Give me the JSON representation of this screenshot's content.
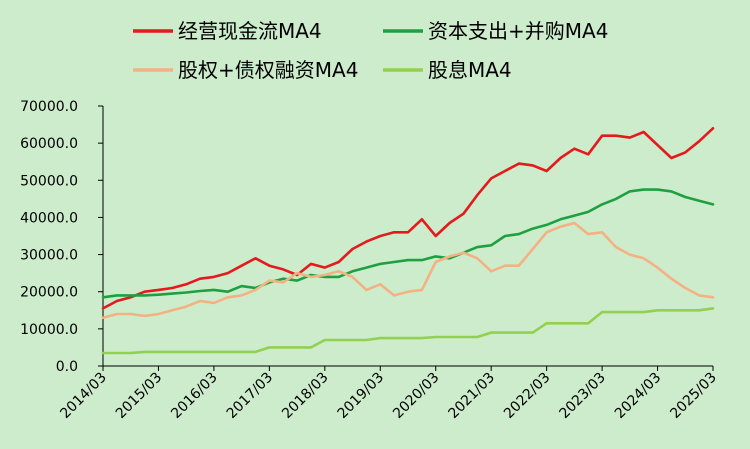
{
  "chart_data": {
    "type": "line",
    "title": "",
    "xlabel": "",
    "ylabel": "",
    "ylim": [
      0,
      70000
    ],
    "y_ticks": [
      "0.0",
      "10000.0",
      "20000.0",
      "30000.0",
      "40000.0",
      "50000.0",
      "60000.0",
      "70000.0"
    ],
    "x_ticks": [
      "2014/03",
      "2015/03",
      "2016/03",
      "2017/03",
      "2018/03",
      "2019/03",
      "2020/03",
      "2021/03",
      "2022/03",
      "2023/03",
      "2024/03",
      "2025/03"
    ],
    "x": [
      "2014/03",
      "2014/06",
      "2014/09",
      "2014/12",
      "2015/03",
      "2015/06",
      "2015/09",
      "2015/12",
      "2016/03",
      "2016/06",
      "2016/09",
      "2016/12",
      "2017/03",
      "2017/06",
      "2017/09",
      "2017/12",
      "2018/03",
      "2018/06",
      "2018/09",
      "2018/12",
      "2019/03",
      "2019/06",
      "2019/09",
      "2019/12",
      "2020/03",
      "2020/06",
      "2020/09",
      "2020/12",
      "2021/03",
      "2021/06",
      "2021/09",
      "2021/12",
      "2022/03",
      "2022/06",
      "2022/09",
      "2022/12",
      "2023/03",
      "2023/06",
      "2023/09",
      "2023/12",
      "2024/03",
      "2024/06",
      "2024/09",
      "2024/12",
      "2025/03"
    ],
    "grid": false,
    "legend_position": "top",
    "series": [
      {
        "name": "经营现金流MA4",
        "color": "#e41a1c",
        "values": [
          15500,
          17500,
          18500,
          20000,
          20500,
          21000,
          22000,
          23500,
          24000,
          25000,
          27000,
          29000,
          27000,
          26000,
          24500,
          27500,
          26500,
          28000,
          31500,
          33500,
          35000,
          36000,
          36000,
          39500,
          35000,
          38500,
          41000,
          46000,
          50500,
          52500,
          54500,
          54000,
          52500,
          56000,
          58500,
          57000,
          62000,
          62000,
          61500,
          63000,
          59500,
          56000,
          57500,
          60500,
          64000
        ]
      },
      {
        "name": "资本支出+并购MA4",
        "color": "#1fa040",
        "values": [
          18500,
          19000,
          19000,
          19000,
          19200,
          19500,
          19800,
          20200,
          20500,
          20000,
          21500,
          21000,
          22500,
          23500,
          23000,
          24500,
          24000,
          24000,
          25500,
          26500,
          27500,
          28000,
          28500,
          28500,
          29500,
          29000,
          30500,
          32000,
          32500,
          35000,
          35500,
          37000,
          38000,
          39500,
          40500,
          41500,
          43500,
          45000,
          47000,
          47500,
          47500,
          47000,
          45500,
          44500,
          43500
        ]
      },
      {
        "name": "股权+债权融资MA4",
        "color": "#f4b183",
        "values": [
          13000,
          14000,
          14000,
          13500,
          14000,
          15000,
          16000,
          17500,
          17000,
          18500,
          19000,
          20500,
          23000,
          22500,
          25000,
          24000,
          24500,
          25500,
          24000,
          20500,
          22000,
          19000,
          20000,
          20500,
          28000,
          29500,
          30500,
          29000,
          25500,
          27000,
          27000,
          31500,
          36000,
          37500,
          38500,
          35500,
          36000,
          32000,
          30000,
          29000,
          26500,
          23500,
          21000,
          19000,
          18500
        ]
      },
      {
        "name": "股息MA4",
        "color": "#92d050",
        "values": [
          3500,
          3500,
          3500,
          3800,
          3800,
          3800,
          3800,
          3800,
          3800,
          3800,
          3800,
          3800,
          5000,
          5000,
          5000,
          5000,
          7000,
          7000,
          7000,
          7000,
          7500,
          7500,
          7500,
          7500,
          7800,
          7800,
          7800,
          7800,
          9000,
          9000,
          9000,
          9000,
          11500,
          11500,
          11500,
          11500,
          14500,
          14500,
          14500,
          14500,
          15000,
          15000,
          15000,
          15000,
          15500
        ]
      }
    ]
  }
}
